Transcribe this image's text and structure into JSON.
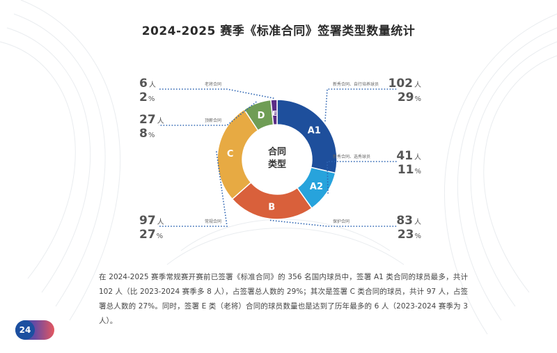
{
  "page": {
    "number": "24"
  },
  "body_text": "在 2024-2025 赛季常规赛开赛前已签署《标准合同》的 356 名国内球员中，签署 A1 类合同的球员最多，共计 102 人（比 2023-2024 赛季多 8 人），占签署总人数的 29%；其次是签署 C 类合同的球员，共计 97 人，占签署总人数的 27%。同时，签署 E 类（老将）合同的球员数量也是达到了历年最多的 6 人（2023-2024 赛季为 3 人）。",
  "chart_data": {
    "type": "pie",
    "title": "2024-2025 赛季《标准合同》签署类型数量统计",
    "center_label": [
      "合同",
      "类型"
    ],
    "count_unit": "人",
    "percent_unit": "%",
    "slices": [
      {
        "label": "A1",
        "count": 102,
        "percent": 29,
        "note": "新秀合同、自行培养球员",
        "color": "#1e4f9c"
      },
      {
        "label": "A2",
        "count": 41,
        "percent": 11,
        "note": "新秀合同、选秀球员",
        "color": "#27a3dc"
      },
      {
        "label": "B",
        "count": 83,
        "percent": 23,
        "note": "保护合同",
        "color": "#d9603b"
      },
      {
        "label": "C",
        "count": 97,
        "percent": 27,
        "note": "常规合同",
        "color": "#e7aa43"
      },
      {
        "label": "D",
        "count": 27,
        "percent": 8,
        "note": "顶薪合同",
        "color": "#6f9d55"
      },
      {
        "label": "E",
        "count": 6,
        "percent": 2,
        "note": "老将合同",
        "color": "#5b2d86"
      }
    ]
  }
}
